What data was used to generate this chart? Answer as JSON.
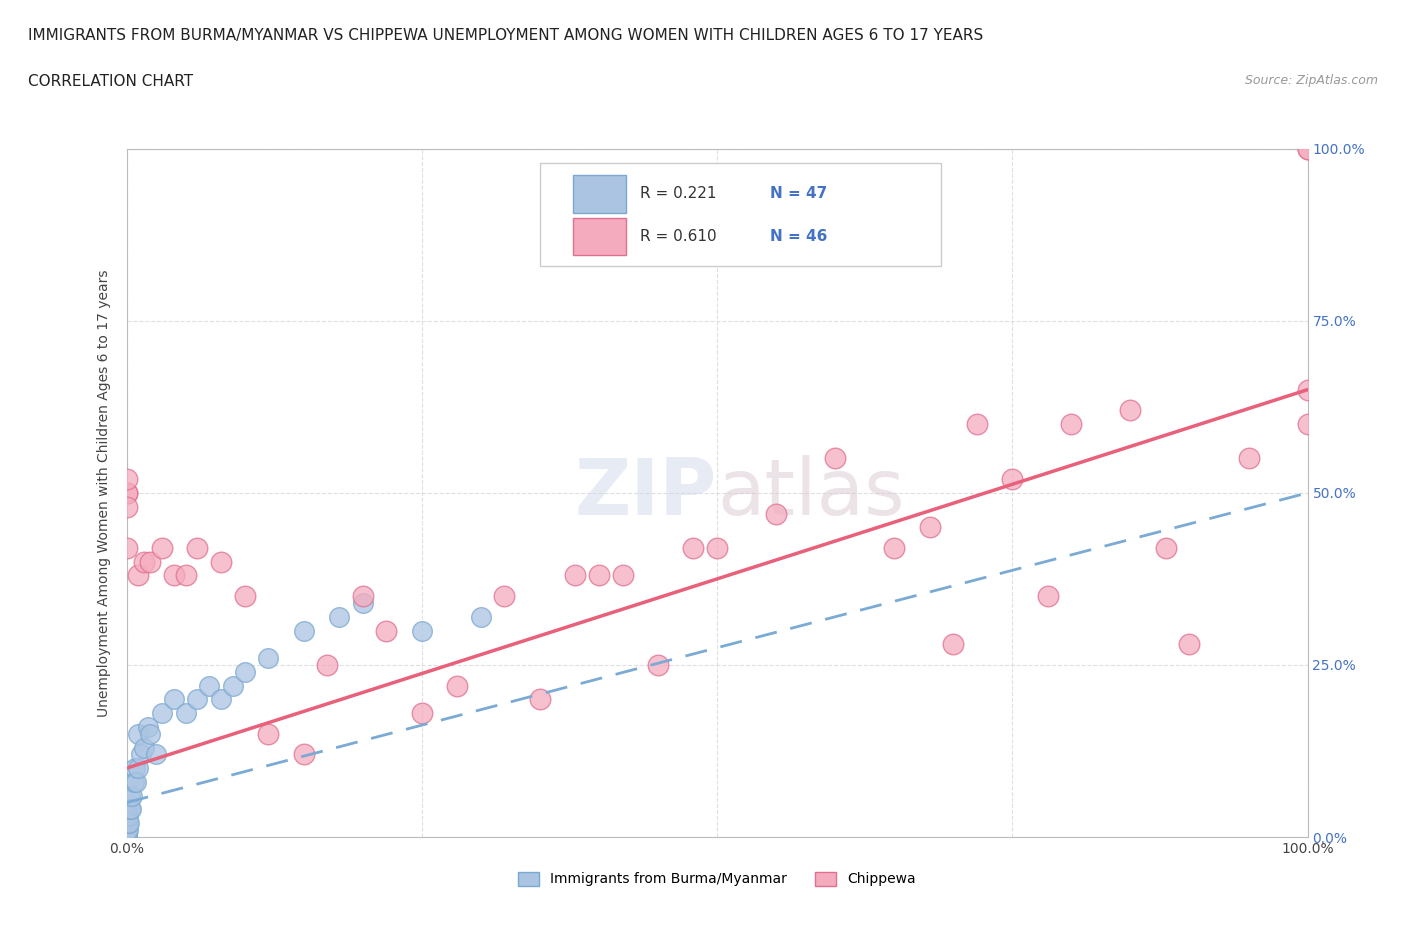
{
  "title_line1": "IMMIGRANTS FROM BURMA/MYANMAR VS CHIPPEWA UNEMPLOYMENT AMONG WOMEN WITH CHILDREN AGES 6 TO 17 YEARS",
  "title_line2": "CORRELATION CHART",
  "source_text": "Source: ZipAtlas.com",
  "ylabel": "Unemployment Among Women with Children Ages 6 to 17 years",
  "xlim": [
    0.0,
    1.0
  ],
  "ylim": [
    0.0,
    1.0
  ],
  "xtick_vals": [
    0.0,
    0.25,
    0.5,
    0.75,
    1.0
  ],
  "xticklabels": [
    "0.0%",
    "",
    "50.0%",
    "",
    "100.0%"
  ],
  "ytick_vals": [
    0.0,
    0.25,
    0.5,
    0.75,
    1.0
  ],
  "yticklabels_right": [
    "0.0%",
    "25.0%",
    "50.0%",
    "75.0%",
    "100.0%"
  ],
  "watermark": "ZIPatlas",
  "color_burma": "#aac4e2",
  "color_burma_edge": "#7ba8d0",
  "color_chippewa": "#f5abbe",
  "color_chippewa_edge": "#e07090",
  "color_burma_line": "#7baad4",
  "color_chippewa_line": "#e8607a",
  "color_text_blue": "#4472c4",
  "color_text_dark": "#333333",
  "color_right_tick": "#4472c4",
  "grid_color": "#d8d8d8",
  "background_color": "#ffffff",
  "title_fontsize": 11,
  "axis_label_fontsize": 10,
  "tick_fontsize": 10,
  "legend_r1": "R = 0.221",
  "legend_n1": "N = 47",
  "legend_r2": "R = 0.610",
  "legend_n2": "N = 46",
  "burma_x": [
    0.0,
    0.0,
    0.0,
    0.0,
    0.0,
    0.0,
    0.0,
    0.0,
    0.0,
    0.0,
    0.0,
    0.0,
    0.0,
    0.0,
    0.0,
    0.001,
    0.001,
    0.001,
    0.002,
    0.003,
    0.003,
    0.004,
    0.005,
    0.006,
    0.007,
    0.008,
    0.01,
    0.01,
    0.012,
    0.015,
    0.018,
    0.02,
    0.025,
    0.03,
    0.04,
    0.05,
    0.06,
    0.07,
    0.08,
    0.09,
    0.1,
    0.12,
    0.15,
    0.18,
    0.2,
    0.25,
    0.3
  ],
  "burma_y": [
    0.0,
    0.0,
    0.0,
    0.0,
    0.0,
    0.0,
    0.0,
    0.0,
    0.01,
    0.01,
    0.02,
    0.02,
    0.03,
    0.03,
    0.04,
    0.01,
    0.02,
    0.03,
    0.02,
    0.04,
    0.06,
    0.04,
    0.06,
    0.08,
    0.1,
    0.08,
    0.1,
    0.15,
    0.12,
    0.13,
    0.16,
    0.15,
    0.12,
    0.18,
    0.2,
    0.18,
    0.2,
    0.22,
    0.2,
    0.22,
    0.24,
    0.26,
    0.3,
    0.32,
    0.34,
    0.3,
    0.32
  ],
  "chippewa_x": [
    0.0,
    0.0,
    0.0,
    0.0,
    0.0,
    0.01,
    0.015,
    0.02,
    0.03,
    0.04,
    0.05,
    0.06,
    0.08,
    0.1,
    0.12,
    0.15,
    0.17,
    0.2,
    0.22,
    0.25,
    0.28,
    0.32,
    0.35,
    0.38,
    0.4,
    0.42,
    0.45,
    0.48,
    0.5,
    0.55,
    0.6,
    0.65,
    0.68,
    0.7,
    0.72,
    0.75,
    0.78,
    0.8,
    0.85,
    0.88,
    0.9,
    0.95,
    1.0,
    1.0,
    1.0,
    1.0
  ],
  "chippewa_y": [
    0.5,
    0.5,
    0.52,
    0.48,
    0.42,
    0.38,
    0.4,
    0.4,
    0.42,
    0.38,
    0.38,
    0.42,
    0.4,
    0.35,
    0.15,
    0.12,
    0.25,
    0.35,
    0.3,
    0.18,
    0.22,
    0.35,
    0.2,
    0.38,
    0.38,
    0.38,
    0.25,
    0.42,
    0.42,
    0.47,
    0.55,
    0.42,
    0.45,
    0.28,
    0.6,
    0.52,
    0.35,
    0.6,
    0.62,
    0.42,
    0.28,
    0.55,
    0.6,
    1.0,
    0.65,
    1.0
  ],
  "chippewa_line_x0": 0.0,
  "chippewa_line_y0": 0.1,
  "chippewa_line_x1": 1.0,
  "chippewa_line_y1": 0.65,
  "burma_line_x0": 0.0,
  "burma_line_y0": 0.05,
  "burma_line_x1": 1.0,
  "burma_line_y1": 0.5
}
